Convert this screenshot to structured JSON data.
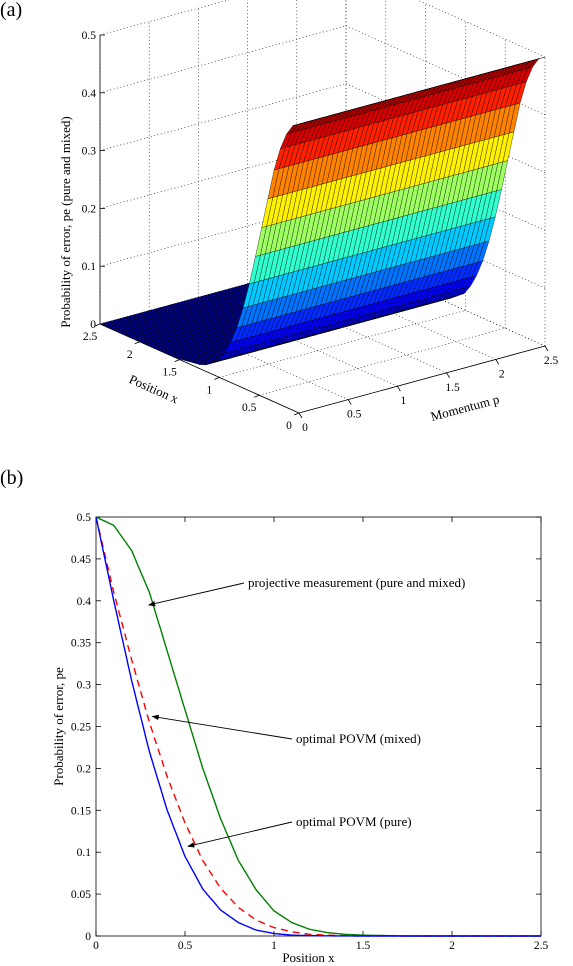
{
  "chart_data": [
    {
      "panel_label": "(a)",
      "type": "surface",
      "title": "",
      "xlabel": "Momentum p",
      "ylabel": "Position x",
      "zlabel": "Probability of error, pe (pure and mixed)",
      "xlim": [
        0,
        2.5
      ],
      "ylim": [
        0,
        2.5
      ],
      "zlim": [
        0,
        0.5
      ],
      "x_ticks": [
        "0",
        "0.5",
        "1",
        "1.5",
        "2",
        "2.5"
      ],
      "y_ticks": [
        "0",
        "0.5",
        "1",
        "1.5",
        "2",
        "2.5"
      ],
      "z_ticks": [
        "0",
        "0.1",
        "0.2",
        "0.3",
        "0.4",
        "0.5"
      ],
      "colormap": "jet",
      "grid": true,
      "surface_profile": {
        "description_of_values": "pe varies along position x only; constant along momentum p",
        "x": [
          0,
          0.1,
          0.2,
          0.3,
          0.4,
          0.5,
          0.6,
          0.7,
          0.8,
          0.9,
          1.0,
          1.2,
          1.5,
          2.0,
          2.5
        ],
        "pe": [
          0.5,
          0.49,
          0.46,
          0.41,
          0.34,
          0.27,
          0.2,
          0.14,
          0.09,
          0.055,
          0.03,
          0.008,
          0.001,
          0,
          0
        ]
      }
    },
    {
      "panel_label": "(b)",
      "type": "line",
      "title": "",
      "xlabel": "Position x",
      "ylabel": "Probability of error, pe",
      "xlim": [
        0,
        2.5
      ],
      "ylim": [
        0,
        0.5
      ],
      "x_ticks": [
        "0",
        "0.5",
        "1",
        "1.5",
        "2",
        "2.5"
      ],
      "y_ticks": [
        "0",
        "0.05",
        "0.1",
        "0.15",
        "0.2",
        "0.25",
        "0.3",
        "0.35",
        "0.4",
        "0.45",
        "0.5"
      ],
      "grid": false,
      "series": [
        {
          "name": "projective measurement (pure and mixed)",
          "color": "#008000",
          "dash": "solid",
          "x": [
            0,
            0.1,
            0.2,
            0.3,
            0.4,
            0.5,
            0.6,
            0.7,
            0.8,
            0.9,
            1.0,
            1.1,
            1.2,
            1.3,
            1.4,
            1.5,
            1.75,
            2.0,
            2.5
          ],
          "y": [
            0.5,
            0.49,
            0.46,
            0.41,
            0.34,
            0.27,
            0.2,
            0.14,
            0.09,
            0.055,
            0.03,
            0.016,
            0.008,
            0.004,
            0.002,
            0.001,
            0.0,
            0.0,
            0.0
          ]
        },
        {
          "name": "optimal POVM (mixed)",
          "color": "#ff0000",
          "dash": "dashed",
          "x": [
            0,
            0.1,
            0.2,
            0.3,
            0.4,
            0.5,
            0.6,
            0.7,
            0.8,
            0.9,
            1.0,
            1.1,
            1.2,
            1.3,
            1.4,
            1.5,
            1.75,
            2.0,
            2.5
          ],
          "y": [
            0.5,
            0.41,
            0.33,
            0.255,
            0.19,
            0.135,
            0.09,
            0.057,
            0.034,
            0.019,
            0.01,
            0.005,
            0.002,
            0.001,
            0.0004,
            0.0002,
            0.0,
            0.0,
            0.0
          ]
        },
        {
          "name": "optimal POVM (pure)",
          "color": "#0000ff",
          "dash": "solid",
          "x": [
            0,
            0.1,
            0.2,
            0.3,
            0.4,
            0.5,
            0.6,
            0.7,
            0.8,
            0.9,
            1.0,
            1.1,
            1.2,
            1.3,
            1.4,
            1.5,
            1.75,
            2.0,
            2.5
          ],
          "y": [
            0.5,
            0.4,
            0.305,
            0.22,
            0.15,
            0.095,
            0.056,
            0.031,
            0.016,
            0.007,
            0.003,
            0.001,
            0.0005,
            0.0002,
            0.0001,
            0.0,
            0.0,
            0.0,
            0.0
          ]
        }
      ],
      "annotations": [
        {
          "text": "projective measurement (pure and mixed)",
          "points_to_series": 0,
          "x": 0.28,
          "y": 0.395
        },
        {
          "text": "optimal POVM (mixed)",
          "points_to_series": 1,
          "x": 0.3,
          "y": 0.262
        },
        {
          "text": "optimal POVM (pure)",
          "points_to_series": 2,
          "x": 0.5,
          "y": 0.107
        }
      ]
    }
  ]
}
